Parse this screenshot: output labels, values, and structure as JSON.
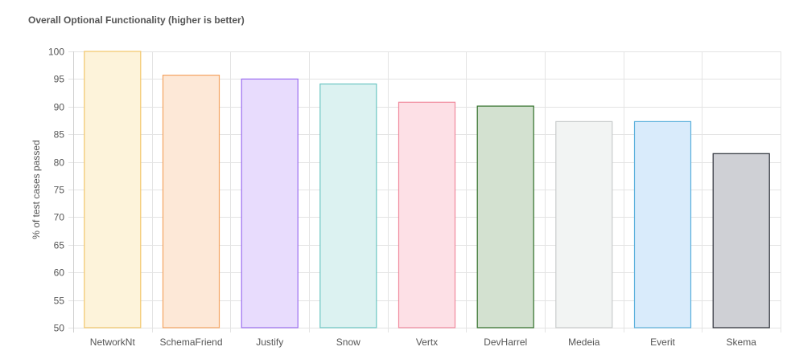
{
  "chart_data": {
    "type": "bar",
    "title": "Overall Optional Functionality (higher is better)",
    "xlabel": "",
    "ylabel": "% of test cases passed",
    "ylim": [
      50,
      100
    ],
    "y_ticks": [
      50,
      55,
      60,
      65,
      70,
      75,
      80,
      85,
      90,
      95,
      100
    ],
    "categories": [
      "NetworkNt",
      "SchemaFriend",
      "Justify",
      "Snow",
      "Vertx",
      "DevHarrel",
      "Medeia",
      "Everit",
      "Skema"
    ],
    "values": [
      100.0,
      95.7,
      95.0,
      94.1,
      90.8,
      90.1,
      87.3,
      87.3,
      81.5
    ],
    "colors": [
      {
        "fill": "#fdf3da",
        "stroke": "#f2c66a"
      },
      {
        "fill": "#fde8d7",
        "stroke": "#f4a462"
      },
      {
        "fill": "#e8dcfd",
        "stroke": "#9b6df0"
      },
      {
        "fill": "#dcf2f1",
        "stroke": "#6cc6c3"
      },
      {
        "fill": "#fde0e6",
        "stroke": "#f0899d"
      },
      {
        "fill": "#d3e1d0",
        "stroke": "#2f6e27"
      },
      {
        "fill": "#f2f4f3",
        "stroke": "#c9cccc"
      },
      {
        "fill": "#d9ebfb",
        "stroke": "#5cb0dc"
      },
      {
        "fill": "#cfd0d5",
        "stroke": "#2a2d36"
      }
    ],
    "grid": true,
    "legend": "none"
  }
}
